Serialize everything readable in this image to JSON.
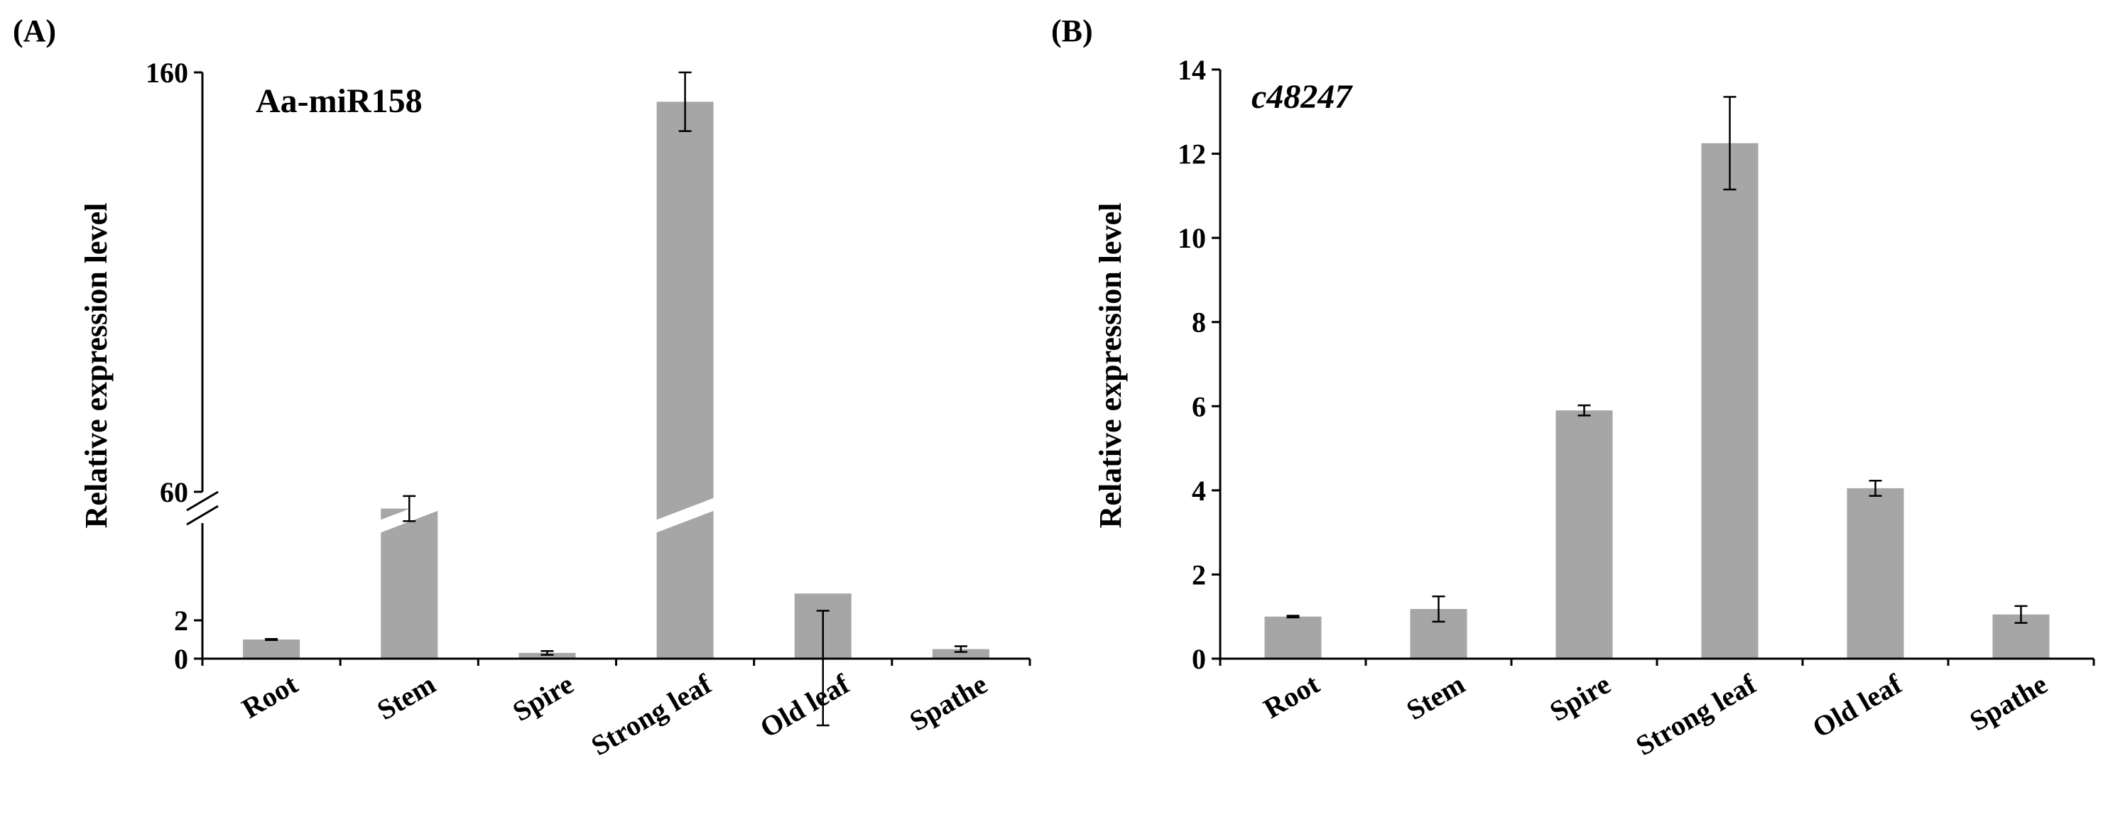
{
  "chart_data": [
    {
      "panel_label": "(A)",
      "type": "bar",
      "title": "Aa-miR158",
      "title_italic": false,
      "ylabel": "Relative expression level",
      "xlabel": "",
      "broken_axis": true,
      "y_segments": {
        "lower": [
          0,
          4
        ],
        "upper": [
          50,
          160
        ]
      },
      "yticks": [
        0,
        2,
        60,
        160
      ],
      "categories": [
        "Root",
        "Stem",
        "Spire",
        "Strong leaf",
        "Old leaf",
        "Spathe"
      ],
      "values": [
        1.0,
        56,
        0.3,
        153,
        3.4,
        0.5
      ],
      "errors": [
        0.03,
        3,
        0.1,
        7,
        0.9,
        0.15
      ],
      "bar_color": "#a6a6a6",
      "grid": false,
      "legend": "none"
    },
    {
      "panel_label": "(B)",
      "type": "bar",
      "title": "c48247",
      "title_italic": true,
      "ylabel": "Relative expression level",
      "xlabel": "",
      "broken_axis": false,
      "ylim": [
        0,
        14
      ],
      "yticks": [
        0,
        2,
        4,
        6,
        8,
        10,
        12,
        14
      ],
      "categories": [
        "Root",
        "Stem",
        "Spire",
        "Strong leaf",
        "Old leaf",
        "Spathe"
      ],
      "values": [
        1.0,
        1.18,
        5.9,
        12.25,
        4.05,
        1.05
      ],
      "errors": [
        0.02,
        0.3,
        0.12,
        1.1,
        0.18,
        0.2
      ],
      "bar_color": "#a6a6a6",
      "grid": false,
      "legend": "none"
    }
  ]
}
